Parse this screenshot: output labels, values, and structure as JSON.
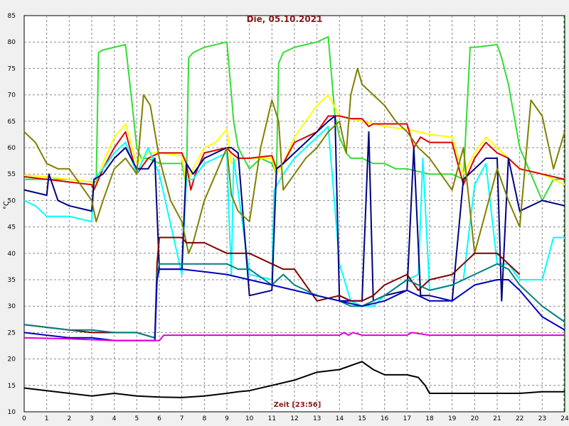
{
  "chart_data": {
    "type": "line",
    "title": "Die, 05.10.2021",
    "xlabel": "Zeit [23:56]",
    "ylabel": "°C",
    "xlim": [
      0,
      24
    ],
    "ylim": [
      10,
      85
    ],
    "xticks": [
      "0",
      "1",
      "2",
      "3",
      "4",
      "5",
      "6",
      "7",
      "8",
      "9",
      "10",
      "11",
      "12",
      "13",
      "14",
      "15",
      "16",
      "17",
      "18",
      "19",
      "20",
      "21",
      "22",
      "23",
      "24"
    ],
    "yticks": [
      "10",
      "15",
      "20",
      "25",
      "30",
      "35",
      "40",
      "45",
      "50",
      "55",
      "60",
      "65",
      "70",
      "75",
      "80",
      "85"
    ],
    "grid": true,
    "legend": "none",
    "series": [
      {
        "color": "#33dd33",
        "x": [
          0,
          1,
          2,
          3,
          3.2,
          3.3,
          3.5,
          4,
          4.5,
          4.8,
          5,
          5.2,
          5.5,
          6,
          7,
          7.2,
          7.3,
          7.5,
          8,
          9,
          9.1,
          9.3,
          9.5,
          10,
          10.5,
          11,
          11.2,
          11.3,
          11.5,
          12,
          13,
          13.5,
          13.8,
          14,
          14.3,
          14.5,
          15,
          15.5,
          16,
          16.5,
          17,
          18,
          19,
          19.5,
          19.8,
          20,
          21,
          21.2,
          21.5,
          22,
          22.5,
          23,
          23.5,
          24
        ],
        "y": [
          54,
          54,
          54,
          53.5,
          53.5,
          78,
          78.5,
          79,
          79.5,
          68,
          60,
          58,
          58,
          57,
          57,
          53,
          77,
          78,
          79,
          80,
          75,
          65,
          60,
          56,
          58,
          57,
          55,
          76,
          78,
          79,
          80,
          81,
          66,
          62,
          59,
          58,
          58,
          57,
          57,
          56,
          56,
          55,
          55,
          54,
          79,
          79,
          79.5,
          77,
          72,
          60,
          55,
          50,
          54,
          54
        ]
      },
      {
        "color": "#ffff00",
        "x": [
          0,
          1,
          2,
          3,
          3.1,
          3.5,
          4,
          4.5,
          5,
          5.5,
          6,
          7,
          7.2,
          7.5,
          8,
          8.5,
          9,
          9.2,
          9.5,
          10,
          11,
          11.2,
          11.5,
          12,
          12.5,
          13,
          13.5,
          14,
          14.5,
          15,
          15.5,
          16,
          17,
          18,
          19,
          19.5,
          20,
          20.5,
          21,
          21.5,
          22,
          23,
          24
        ],
        "y": [
          54.8,
          54.5,
          54,
          53.5,
          52,
          57,
          62,
          64.5,
          57,
          59,
          59,
          58.5,
          53,
          56,
          60,
          61,
          63.5,
          57,
          58,
          58,
          58,
          55,
          57,
          62,
          65,
          68,
          70,
          66,
          65.5,
          65,
          64.5,
          64,
          63.5,
          62.5,
          62,
          55,
          59,
          62,
          60,
          58,
          56,
          55,
          53
        ]
      },
      {
        "color": "#dd0000",
        "x": [
          0,
          1,
          2,
          3,
          3.1,
          3.5,
          4,
          4.5,
          5,
          5.5,
          6,
          7,
          7.2,
          7.4,
          7.6,
          8,
          9,
          9.2,
          9.5,
          10,
          11,
          11.2,
          11.5,
          12,
          13,
          13.5,
          14,
          14.5,
          15,
          15.3,
          15.5,
          16,
          17,
          17.3,
          17.6,
          18,
          19,
          19.5,
          20,
          20.5,
          21,
          21.5,
          22,
          23,
          24
        ],
        "y": [
          54.5,
          54,
          53.5,
          53,
          52,
          56,
          60,
          63,
          55,
          58,
          59,
          59,
          57,
          52,
          55,
          59,
          60,
          59,
          58,
          58,
          58.5,
          56,
          57,
          61,
          63,
          66,
          66,
          65.5,
          65.5,
          64,
          64.5,
          64.5,
          64.5,
          60,
          62,
          61,
          61,
          53,
          58,
          61,
          59,
          58,
          56,
          55,
          54
        ]
      },
      {
        "color": "#00ffff",
        "x": [
          0,
          0.5,
          1,
          2,
          3,
          3.1,
          3.5,
          4,
          4.5,
          5,
          5.5,
          6,
          7,
          7.2,
          7.5,
          8,
          9,
          9.1,
          9.2,
          9.3,
          10,
          11,
          11.1,
          11.5,
          12,
          13,
          13.5,
          14,
          14.5,
          15,
          15.5,
          16,
          17,
          17.5,
          17.7,
          18,
          19,
          19.5,
          20,
          20.5,
          21,
          21.5,
          22,
          23,
          23.5,
          24
        ],
        "y": [
          50,
          49,
          47,
          47,
          46,
          54,
          56,
          59,
          61,
          55,
          60,
          55,
          36,
          54,
          54,
          57,
          59,
          46,
          36,
          58,
          36,
          35,
          52,
          55,
          58,
          62,
          64,
          38,
          31,
          30,
          30,
          32,
          35,
          36,
          58,
          33,
          34,
          35,
          53,
          57,
          38,
          38,
          35,
          35,
          43,
          43
        ]
      },
      {
        "color": "#000080",
        "x": [
          0,
          1,
          1.1,
          1.5,
          2,
          3,
          3.1,
          3.5,
          4,
          4.5,
          5,
          5.5,
          5.8,
          6,
          7,
          7.2,
          7.5,
          8,
          9,
          9.2,
          9.5,
          10,
          11,
          11.2,
          11.5,
          12,
          13,
          13.5,
          13.8,
          14,
          14.5,
          15,
          15.3,
          15.5,
          16,
          17,
          17.3,
          17.6,
          18,
          19,
          19.5,
          20,
          20.5,
          21,
          21.2,
          21.5,
          22,
          23,
          24
        ],
        "y": [
          52,
          51,
          55,
          50,
          49,
          48,
          54,
          55,
          58,
          60,
          56,
          56,
          58,
          37,
          37,
          57,
          55,
          58,
          60,
          60,
          59,
          32,
          33,
          56,
          57,
          59,
          63,
          65,
          66,
          31,
          31,
          31,
          63,
          31,
          32,
          33,
          60,
          32,
          32,
          31,
          54,
          56,
          58,
          58,
          31,
          58,
          48,
          50,
          49
        ]
      },
      {
        "color": "#808000",
        "x": [
          0,
          0.5,
          1,
          1.5,
          2,
          2.5,
          3,
          3.2,
          3.5,
          4,
          4.5,
          5,
          5.3,
          5.6,
          6,
          6.5,
          7,
          7.3,
          7.5,
          8,
          8.5,
          9,
          9.2,
          9.5,
          10,
          10.5,
          11,
          11.3,
          11.5,
          12,
          12.5,
          13,
          13.5,
          14,
          14.3,
          14.5,
          14.8,
          15,
          15.5,
          16,
          16.5,
          17,
          17.5,
          18,
          18.5,
          19,
          19.5,
          20,
          20.5,
          21,
          21.5,
          22,
          22.5,
          23,
          23.5,
          24
        ],
        "y": [
          63,
          61,
          57,
          56,
          56,
          53,
          50,
          46,
          50,
          56,
          58,
          55,
          70,
          68,
          58,
          50,
          46,
          40,
          42,
          50,
          55,
          60,
          51,
          48,
          46,
          60,
          69,
          65,
          52,
          55,
          58,
          60,
          63,
          65,
          59,
          70,
          75,
          72,
          70,
          68,
          65,
          63,
          60,
          58,
          55,
          52,
          60,
          40,
          48,
          56,
          50,
          45,
          69,
          66,
          56,
          63
        ]
      },
      {
        "color": "#800000",
        "x": [
          0,
          1,
          2,
          3,
          4,
          5,
          5.8,
          5.9,
          6,
          7,
          7.2,
          8,
          9,
          9.5,
          10,
          11,
          11.5,
          12,
          13,
          14,
          14.5,
          15,
          15.5,
          16,
          17,
          17.5,
          18,
          19,
          19.5,
          20,
          21,
          21.5,
          22
        ],
        "y": [
          26.5,
          26,
          25.5,
          25,
          25,
          25,
          24,
          38,
          43,
          43,
          42,
          42,
          40,
          40,
          40,
          38,
          37,
          37,
          31,
          32,
          31,
          31,
          32,
          34,
          36,
          33,
          35,
          36,
          38,
          40,
          40,
          38,
          36
        ]
      },
      {
        "color": "#008080",
        "x": [
          0,
          1,
          2,
          3,
          4,
          5,
          5.8,
          5.9,
          6,
          7,
          8,
          9,
          9.5,
          10,
          11,
          11.5,
          12,
          13,
          14,
          14.5,
          15,
          15.5,
          16,
          17,
          18,
          19,
          20,
          21,
          21.5,
          22,
          23,
          24
        ],
        "y": [
          26.5,
          26,
          25.5,
          25.5,
          25,
          25,
          24,
          36,
          38,
          38,
          38,
          38,
          37,
          37,
          34,
          36,
          34,
          32,
          31,
          30,
          30,
          31,
          32,
          35,
          33,
          34,
          36,
          38,
          37,
          34,
          30,
          27
        ]
      },
      {
        "color": "#0000c0",
        "x": [
          0,
          1,
          2,
          3,
          4,
          5,
          5.8,
          5.9,
          6,
          7,
          8,
          9,
          10,
          11,
          12,
          13,
          14,
          15,
          16,
          17,
          18,
          19,
          20,
          21,
          21.5,
          22,
          23,
          24
        ],
        "y": [
          25,
          24.5,
          24,
          24,
          23.5,
          23.5,
          23.5,
          35,
          37,
          37,
          36.5,
          36,
          35,
          34,
          33,
          32,
          31,
          30,
          31,
          33,
          31,
          31,
          34,
          35,
          35,
          33,
          28,
          25.5
        ]
      },
      {
        "color": "#dd00dd",
        "x": [
          0,
          2,
          4,
          6,
          6.2,
          8,
          10,
          12,
          13,
          14,
          14.2,
          14.4,
          14.6,
          15,
          17,
          17.2,
          18,
          20,
          22,
          24
        ],
        "y": [
          24,
          23.8,
          23.5,
          23.5,
          24.5,
          24.5,
          24.5,
          24.5,
          24.5,
          24.5,
          25,
          24.5,
          25,
          24.5,
          24.5,
          25,
          24.5,
          24.5,
          24.5,
          24.5
        ]
      },
      {
        "color": "#000000",
        "x": [
          0,
          1,
          2,
          3,
          4,
          5,
          6,
          7,
          8,
          9,
          9.5,
          10,
          11,
          12,
          13,
          14,
          15,
          15.5,
          16,
          17,
          17.5,
          17.8,
          18,
          19,
          20,
          21,
          22,
          23,
          24
        ],
        "y": [
          14.5,
          14,
          13.5,
          13,
          13.5,
          13,
          12.8,
          12.7,
          13,
          13.5,
          13.8,
          14,
          15,
          16,
          17.5,
          18,
          19.5,
          18,
          17,
          17,
          16.5,
          15,
          13.5,
          13.5,
          13.5,
          13.5,
          13.5,
          13.8,
          13.8
        ]
      }
    ]
  }
}
